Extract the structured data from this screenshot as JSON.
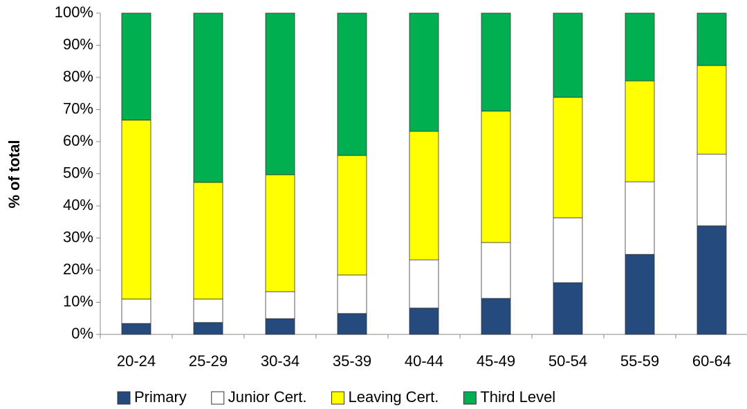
{
  "chart_data": {
    "type": "stacked_bar",
    "y_label": "% of total",
    "categories": [
      "20-24",
      "25-29",
      "30-34",
      "35-39",
      "40-44",
      "45-49",
      "50-54",
      "55-59",
      "60-64"
    ],
    "series": [
      {
        "name": "Primary",
        "color": "#254a7d",
        "values": [
          3.4,
          3.7,
          4.9,
          6.5,
          8.2,
          11.2,
          16.1,
          24.9,
          33.8
        ]
      },
      {
        "name": "Junior Cert.",
        "color": "#ffffff",
        "values": [
          7.6,
          7.3,
          8.4,
          12.0,
          15.0,
          17.4,
          20.2,
          22.6,
          22.3
        ]
      },
      {
        "name": "Leaving Cert.",
        "color": "#ffff00",
        "values": [
          55.7,
          36.3,
          36.4,
          37.2,
          40.0,
          40.9,
          37.5,
          31.4,
          27.6
        ]
      },
      {
        "name": "Third Level",
        "color": "#00b050",
        "values": [
          33.3,
          52.7,
          50.3,
          44.3,
          36.8,
          30.5,
          26.2,
          21.1,
          16.3
        ]
      }
    ],
    "ylim": [
      0,
      100
    ],
    "yticks": [
      {
        "value": 0,
        "label": "0%"
      },
      {
        "value": 10,
        "label": "10%"
      },
      {
        "value": 20,
        "label": "20%"
      },
      {
        "value": 30,
        "label": "30%"
      },
      {
        "value": 40,
        "label": "40%"
      },
      {
        "value": 50,
        "label": "50%"
      },
      {
        "value": 60,
        "label": "60%"
      },
      {
        "value": 70,
        "label": "70%"
      },
      {
        "value": 80,
        "label": "80%"
      },
      {
        "value": 90,
        "label": "90%"
      },
      {
        "value": 100,
        "label": "100%"
      }
    ],
    "legend": "bottom"
  }
}
